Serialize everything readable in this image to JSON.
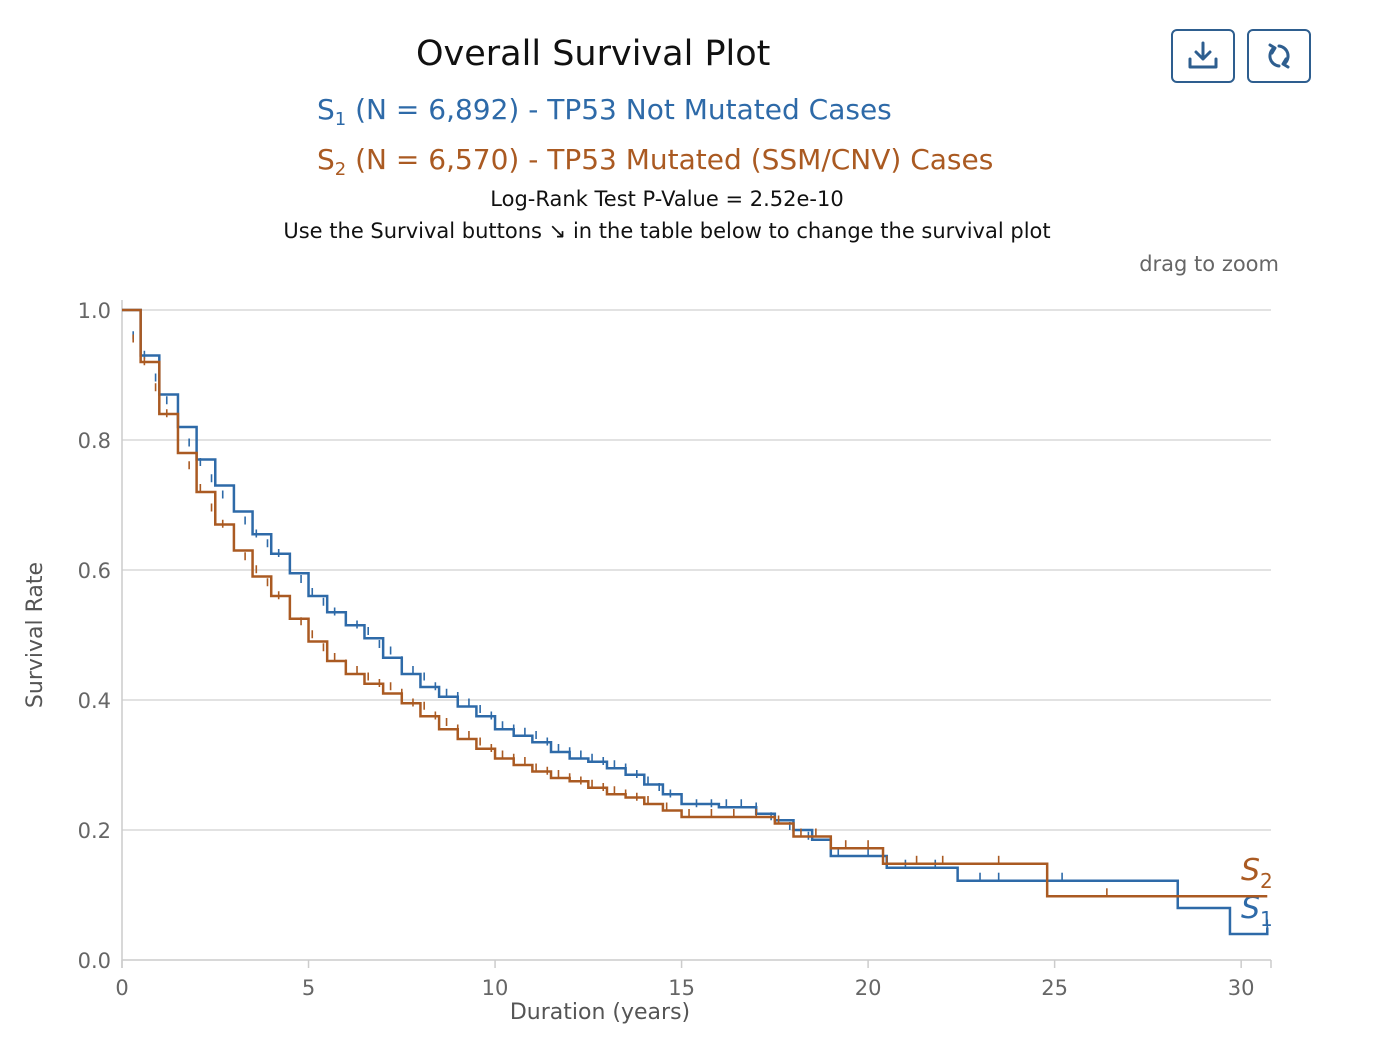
{
  "header": {
    "title": "Overall Survival Plot",
    "pvalue_text": "Log-Rank Test P-Value = 2.52e-10",
    "hint_before": "Use the Survival buttons",
    "hint_arrow": "↘",
    "hint_after": "in the table below to change the survival plot",
    "zoom_hint": "drag to zoom"
  },
  "legend": {
    "s1": {
      "letter": "S",
      "sub": "1",
      "text": " (N = 6,892) - TP53 Not Mutated Cases"
    },
    "s2": {
      "letter": "S",
      "sub": "2",
      "text": " (N = 6,570) - TP53 Mutated (SSM/CNV) Cases"
    }
  },
  "toolbar": {
    "download_icon": "download-icon",
    "reset_icon": "reset-icon"
  },
  "chart_data": {
    "type": "line",
    "step": true,
    "xlabel": "Duration (years)",
    "ylabel": "Survival Rate",
    "xlim": [
      0,
      30.8
    ],
    "ylim": [
      0,
      1
    ],
    "x_ticks": [
      0,
      5,
      10,
      15,
      20,
      25,
      30
    ],
    "x_tick_labels": [
      "0",
      "5",
      "10",
      "15",
      "20",
      "25",
      "30"
    ],
    "y_ticks": [
      0,
      0.2,
      0.4,
      0.6,
      0.8,
      1.0
    ],
    "y_tick_labels": [
      "0.0",
      "0.2",
      "0.4",
      "0.6",
      "0.8",
      "1.0"
    ],
    "grid": true,
    "series": [
      {
        "name": "S1",
        "color": "#2e6aa8",
        "end_label_letter": "S",
        "end_label_sub": "1",
        "x": [
          0,
          0.5,
          1,
          1.5,
          2,
          2.5,
          3,
          3.5,
          4,
          4.5,
          5,
          5.5,
          6,
          6.5,
          7,
          7.5,
          8,
          8.5,
          9,
          9.5,
          10,
          10.5,
          11,
          11.5,
          12,
          12.5,
          13,
          13.5,
          14,
          14.5,
          15,
          16,
          17,
          17.5,
          18,
          18.5,
          19,
          20.5,
          22.4,
          28.3,
          29.7,
          30.7
        ],
        "y": [
          1.0,
          0.93,
          0.87,
          0.82,
          0.77,
          0.73,
          0.69,
          0.655,
          0.625,
          0.595,
          0.56,
          0.535,
          0.515,
          0.495,
          0.465,
          0.44,
          0.42,
          0.405,
          0.39,
          0.375,
          0.355,
          0.345,
          0.335,
          0.32,
          0.31,
          0.305,
          0.295,
          0.285,
          0.27,
          0.255,
          0.24,
          0.235,
          0.225,
          0.215,
          0.2,
          0.185,
          0.16,
          0.142,
          0.122,
          0.08,
          0.04,
          0.05
        ],
        "censor_x": [
          0.3,
          0.6,
          0.9,
          1.2,
          1.5,
          1.8,
          2.1,
          2.4,
          2.7,
          3.0,
          3.3,
          3.6,
          3.9,
          4.2,
          4.5,
          4.8,
          5.1,
          5.4,
          5.7,
          6.0,
          6.3,
          6.6,
          6.9,
          7.2,
          7.5,
          7.8,
          8.1,
          8.4,
          8.7,
          9.0,
          9.3,
          9.6,
          9.9,
          10.2,
          10.5,
          10.8,
          11.1,
          11.4,
          11.7,
          12.0,
          12.3,
          12.6,
          12.9,
          13.2,
          13.5,
          13.8,
          14.1,
          14.4,
          14.7,
          15.0,
          15.4,
          15.8,
          16.2,
          16.6,
          17.0,
          17.4,
          17.9,
          18.4,
          19.2,
          20.0,
          21.0,
          21.8,
          23.0,
          23.5,
          25.2,
          30.7
        ],
        "censor_y": [
          0.955,
          0.925,
          0.89,
          0.855,
          0.82,
          0.79,
          0.76,
          0.735,
          0.71,
          0.69,
          0.67,
          0.65,
          0.635,
          0.62,
          0.6,
          0.58,
          0.56,
          0.545,
          0.53,
          0.52,
          0.51,
          0.5,
          0.48,
          0.47,
          0.455,
          0.44,
          0.43,
          0.415,
          0.405,
          0.4,
          0.39,
          0.38,
          0.37,
          0.355,
          0.35,
          0.345,
          0.34,
          0.33,
          0.32,
          0.315,
          0.31,
          0.305,
          0.3,
          0.295,
          0.29,
          0.28,
          0.27,
          0.26,
          0.25,
          0.24,
          0.235,
          0.235,
          0.235,
          0.235,
          0.23,
          0.215,
          0.2,
          0.185,
          0.16,
          0.16,
          0.142,
          0.142,
          0.122,
          0.122,
          0.122,
          0.05
        ]
      },
      {
        "name": "S2",
        "color": "#aa5a22",
        "end_label_letter": "S",
        "end_label_sub": "2",
        "x": [
          0,
          0.5,
          1,
          1.5,
          2,
          2.5,
          3,
          3.5,
          4,
          4.5,
          5,
          5.5,
          6,
          6.5,
          7,
          7.5,
          8,
          8.5,
          9,
          9.5,
          10,
          10.5,
          11,
          11.5,
          12,
          12.5,
          13,
          13.5,
          14,
          14.5,
          15,
          16,
          17,
          17.5,
          18,
          19,
          20.4,
          24.8,
          30.7
        ],
        "y": [
          1.0,
          0.92,
          0.84,
          0.78,
          0.72,
          0.67,
          0.63,
          0.59,
          0.56,
          0.525,
          0.49,
          0.46,
          0.44,
          0.425,
          0.41,
          0.395,
          0.375,
          0.355,
          0.34,
          0.325,
          0.31,
          0.3,
          0.29,
          0.28,
          0.275,
          0.265,
          0.255,
          0.25,
          0.24,
          0.23,
          0.22,
          0.22,
          0.22,
          0.21,
          0.19,
          0.172,
          0.148,
          0.098,
          0.098
        ],
        "censor_x": [
          0.3,
          0.6,
          0.9,
          1.2,
          1.5,
          1.8,
          2.1,
          2.4,
          2.7,
          3.0,
          3.3,
          3.6,
          3.9,
          4.2,
          4.5,
          4.8,
          5.1,
          5.4,
          5.7,
          6.0,
          6.3,
          6.6,
          6.9,
          7.2,
          7.5,
          7.8,
          8.1,
          8.4,
          8.7,
          9.0,
          9.3,
          9.6,
          9.9,
          10.2,
          10.5,
          10.8,
          11.1,
          11.4,
          11.7,
          12.0,
          12.3,
          12.6,
          12.9,
          13.2,
          13.5,
          13.8,
          14.1,
          14.6,
          15.2,
          15.8,
          16.4,
          17.0,
          17.6,
          18.2,
          18.6,
          19.0,
          19.4,
          20.0,
          20.5,
          21.3,
          22.0,
          23.5,
          26.4
        ],
        "censor_y": [
          0.95,
          0.915,
          0.875,
          0.835,
          0.795,
          0.755,
          0.72,
          0.69,
          0.665,
          0.64,
          0.615,
          0.595,
          0.575,
          0.555,
          0.535,
          0.515,
          0.495,
          0.475,
          0.46,
          0.45,
          0.44,
          0.43,
          0.42,
          0.415,
          0.405,
          0.39,
          0.385,
          0.37,
          0.36,
          0.35,
          0.34,
          0.33,
          0.32,
          0.31,
          0.305,
          0.3,
          0.29,
          0.285,
          0.28,
          0.275,
          0.27,
          0.265,
          0.26,
          0.255,
          0.25,
          0.245,
          0.24,
          0.23,
          0.22,
          0.22,
          0.22,
          0.22,
          0.21,
          0.19,
          0.19,
          0.172,
          0.172,
          0.172,
          0.148,
          0.148,
          0.148,
          0.148,
          0.098
        ]
      }
    ]
  }
}
